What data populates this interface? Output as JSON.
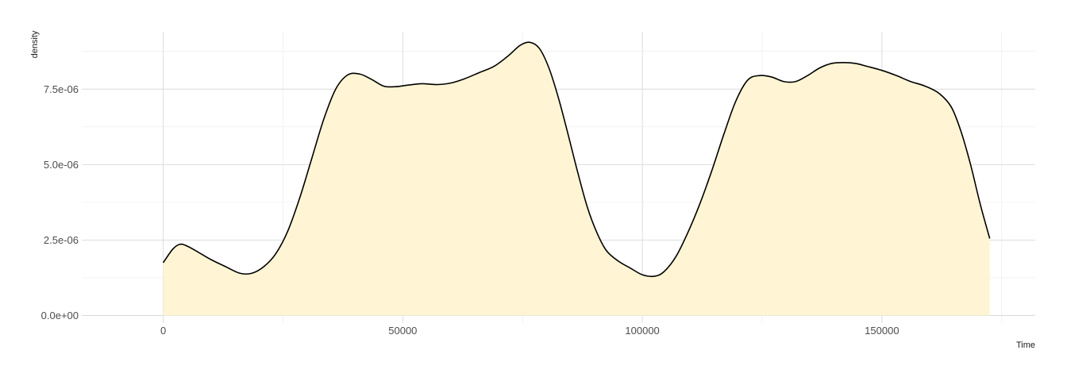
{
  "chart_data": {
    "type": "area",
    "title": "",
    "xlabel": "Time",
    "ylabel": "density",
    "xlim": [
      -17000,
      182000
    ],
    "ylim": [
      -2.5e-07,
      9.4e-06
    ],
    "x_ticks": [
      0,
      50000,
      100000,
      150000
    ],
    "x_tick_labels": [
      "0",
      "50000",
      "100000",
      "150000"
    ],
    "x_minor_ticks": [
      25000,
      75000,
      125000,
      175000
    ],
    "y_ticks": [
      0,
      2.5e-06,
      5e-06,
      7.5e-06
    ],
    "y_tick_labels": [
      "0.0e+00",
      "2.5e-06",
      "5.0e-06",
      "7.5e-06"
    ],
    "y_minor_ticks": [
      1.25e-06,
      3.75e-06,
      6.25e-06,
      8.75e-06
    ],
    "grid": true,
    "fill_color": "#fff5d4",
    "line_color": "#000000",
    "series": [
      {
        "x": [
          0,
          2000,
          3500,
          5000,
          7500,
          10000,
          13000,
          16000,
          18500,
          21000,
          23500,
          26000,
          28500,
          31000,
          33500,
          36000,
          38500,
          41000,
          43500,
          46000,
          48500,
          51000,
          54000,
          57000,
          60000,
          63000,
          66000,
          69000,
          72000,
          74500,
          76500,
          78500,
          80500,
          82500,
          84500,
          86500,
          88500,
          90500,
          92500,
          95000,
          97500,
          100000,
          102500,
          104500,
          107000,
          109500,
          112000,
          114500,
          117000,
          119500,
          122000,
          124500,
          127000,
          129500,
          132000,
          134500,
          137000,
          139500,
          142000,
          144500,
          147000,
          150000,
          153000,
          156000,
          159000,
          162000,
          164500,
          166500,
          168500,
          170500,
          172500
        ],
        "y": [
          1.75e-06,
          2.2e-06,
          2.36e-06,
          2.3e-06,
          2.08e-06,
          1.85e-06,
          1.62e-06,
          1.4e-06,
          1.4e-06,
          1.62e-06,
          2.05e-06,
          2.8e-06,
          3.9e-06,
          5.2e-06,
          6.5e-06,
          7.5e-06,
          7.97e-06,
          8e-06,
          7.82e-06,
          7.6e-06,
          7.58e-06,
          7.63e-06,
          7.68e-06,
          7.65e-06,
          7.7e-06,
          7.85e-06,
          8.05e-06,
          8.25e-06,
          8.6e-06,
          8.95e-06,
          9.05e-06,
          8.85e-06,
          8.2e-06,
          7.2e-06,
          6e-06,
          4.75e-06,
          3.6e-06,
          2.75e-06,
          2.15e-06,
          1.8e-06,
          1.57e-06,
          1.35e-06,
          1.3e-06,
          1.45e-06,
          1.95e-06,
          2.75e-06,
          3.7e-06,
          4.8e-06,
          6e-06,
          7.1e-06,
          7.8e-06,
          7.95e-06,
          7.9e-06,
          7.75e-06,
          7.75e-06,
          7.95e-06,
          8.2e-06,
          8.35e-06,
          8.38e-06,
          8.35e-06,
          8.25e-06,
          8.12e-06,
          7.95e-06,
          7.75e-06,
          7.6e-06,
          7.35e-06,
          6.9e-06,
          6.1e-06,
          5e-06,
          3.7e-06,
          2.55e-06
        ]
      }
    ]
  }
}
